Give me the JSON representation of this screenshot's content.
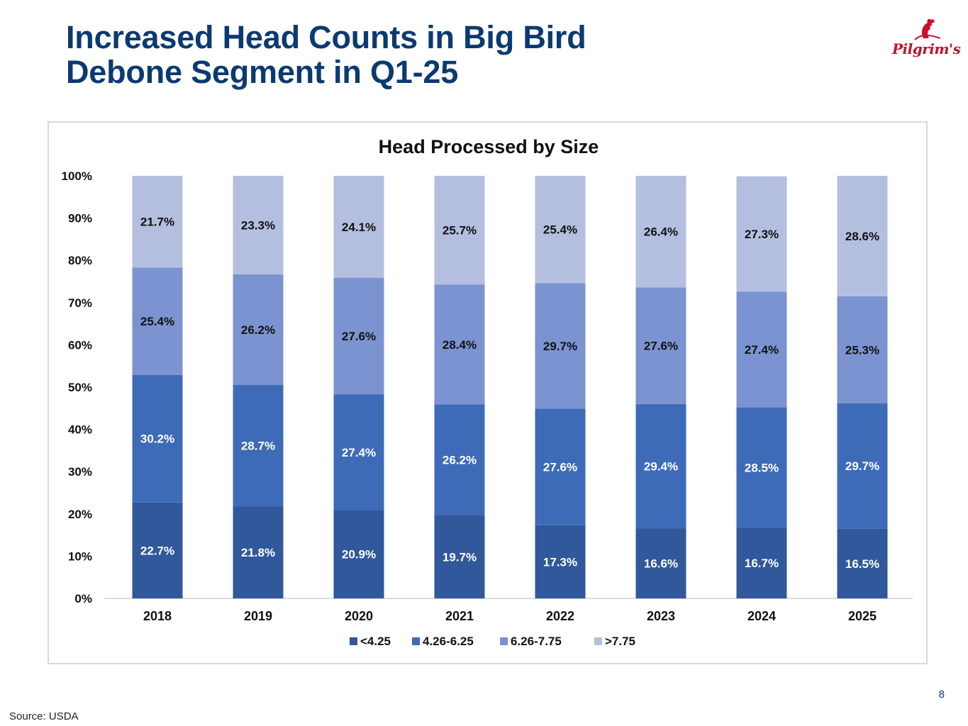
{
  "slide": {
    "title_line1": "Increased Head Counts in Big Bird",
    "title_line2": "Debone Segment in Q1-25",
    "logo_text": "Pilgrim's",
    "page_number": "8",
    "source": "Source: USDA"
  },
  "colors": {
    "title": "#0b3a72",
    "brand_red": "#c8102e",
    "series": [
      "#30589a",
      "#3e6bb8",
      "#7b93d0",
      "#b4bfe0"
    ]
  },
  "chart_data": {
    "type": "bar",
    "stacked": true,
    "title": "Head Processed by Size",
    "xlabel": "",
    "ylabel": "",
    "ylim": [
      0,
      100
    ],
    "yticks": [
      "0%",
      "10%",
      "20%",
      "30%",
      "40%",
      "50%",
      "60%",
      "70%",
      "80%",
      "90%",
      "100%"
    ],
    "categories": [
      "2018",
      "2019",
      "2020",
      "2021",
      "2022",
      "2023",
      "2024",
      "2025"
    ],
    "series": [
      {
        "name": "<4.25",
        "values": [
          22.7,
          21.8,
          20.9,
          19.7,
          17.3,
          16.6,
          16.7,
          16.5
        ],
        "labels": [
          "22.7%",
          "21.8%",
          "20.9%",
          "19.7%",
          "17.3%",
          "16.6%",
          "16.7%",
          "16.5%"
        ],
        "label_color": "#ffffff"
      },
      {
        "name": "4.26-6.25",
        "values": [
          30.2,
          28.7,
          27.4,
          26.2,
          27.6,
          29.4,
          28.5,
          29.7
        ],
        "labels": [
          "30.2%",
          "28.7%",
          "27.4%",
          "26.2%",
          "27.6%",
          "29.4%",
          "28.5%",
          "29.7%"
        ],
        "label_color": "#ffffff"
      },
      {
        "name": "6.26-7.75",
        "values": [
          25.4,
          26.2,
          27.6,
          28.4,
          29.7,
          27.6,
          27.4,
          25.3
        ],
        "labels": [
          "25.4%",
          "26.2%",
          "27.6%",
          "28.4%",
          "29.7%",
          "27.6%",
          "27.4%",
          "25.3%"
        ],
        "label_color": "#111111"
      },
      {
        "name": ">7.75",
        "values": [
          21.7,
          23.3,
          24.1,
          25.7,
          25.4,
          26.4,
          27.3,
          28.6
        ],
        "labels": [
          "21.7%",
          "23.3%",
          "24.1%",
          "25.7%",
          "25.4%",
          "26.4%",
          "27.3%",
          "28.6%"
        ],
        "label_color": "#111111"
      }
    ],
    "legend_position": "bottom"
  }
}
